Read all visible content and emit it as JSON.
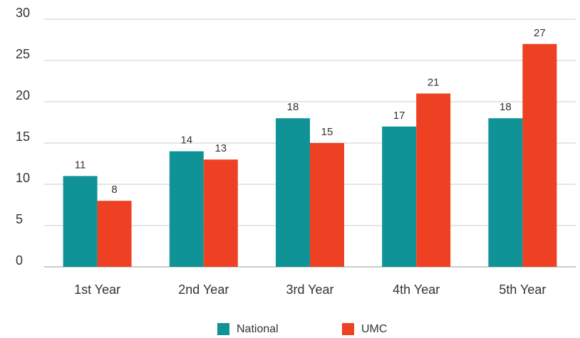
{
  "chart_data": {
    "type": "bar",
    "categories": [
      "1st Year",
      "2nd Year",
      "3rd Year",
      "4th Year",
      "5th Year"
    ],
    "series": [
      {
        "name": "National",
        "color": "#0f9396",
        "values": [
          11,
          14,
          18,
          17,
          18
        ]
      },
      {
        "name": "UMC",
        "color": "#ee4123",
        "values": [
          8,
          13,
          15,
          21,
          27
        ]
      }
    ],
    "ylim": [
      0,
      30
    ],
    "yticks": [
      0,
      5,
      10,
      15,
      20,
      25,
      30
    ],
    "grid": true,
    "legend": "bottom"
  }
}
